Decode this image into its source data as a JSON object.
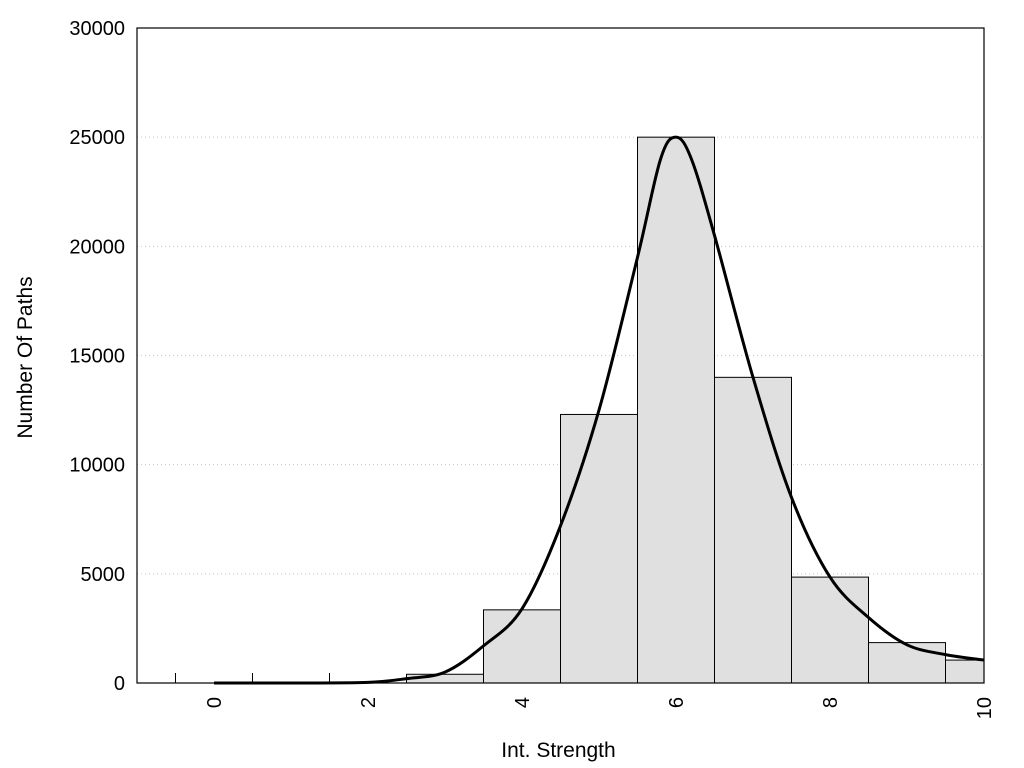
{
  "chart_data": {
    "type": "bar",
    "title": "",
    "xlabel": "Int. Strength",
    "ylabel": "Number Of Paths",
    "xlim": [
      -1,
      10
    ],
    "ylim": [
      0,
      30000
    ],
    "grid": "horizontal dotted",
    "legend": "none",
    "x_ticks": [
      "0",
      "2",
      "4",
      "6",
      "8",
      "10"
    ],
    "y_ticks": [
      "0",
      "5000",
      "10000",
      "15000",
      "20000",
      "25000",
      "30000"
    ],
    "bins": [
      {
        "x": 0,
        "value": 0
      },
      {
        "x": 1,
        "value": 0
      },
      {
        "x": 2,
        "value": 0
      },
      {
        "x": 3,
        "value": 400
      },
      {
        "x": 4,
        "value": 3350
      },
      {
        "x": 5,
        "value": 12300
      },
      {
        "x": 6,
        "value": 25000
      },
      {
        "x": 7,
        "value": 14000
      },
      {
        "x": 8,
        "value": 4850
      },
      {
        "x": 9,
        "value": 1850
      },
      {
        "x": 10,
        "value": 1050
      }
    ],
    "series": [
      {
        "type": "line",
        "x": [
          0,
          1,
          2,
          2.5,
          3,
          3.5,
          4,
          4.5,
          5,
          5.5,
          5.8,
          6,
          6.2,
          6.5,
          7,
          7.5,
          8,
          8.5,
          9,
          9.5,
          10
        ],
        "y": [
          0,
          0,
          30,
          200,
          500,
          1700,
          3400,
          7200,
          12500,
          19500,
          24000,
          25000,
          24000,
          20500,
          14000,
          8500,
          4850,
          3000,
          1750,
          1300,
          1050
        ]
      }
    ],
    "colors": {
      "bar_fill": "#e0e0e0",
      "bar_stroke": "#000000",
      "line": "#000000",
      "grid": "#c8c8c8"
    }
  }
}
